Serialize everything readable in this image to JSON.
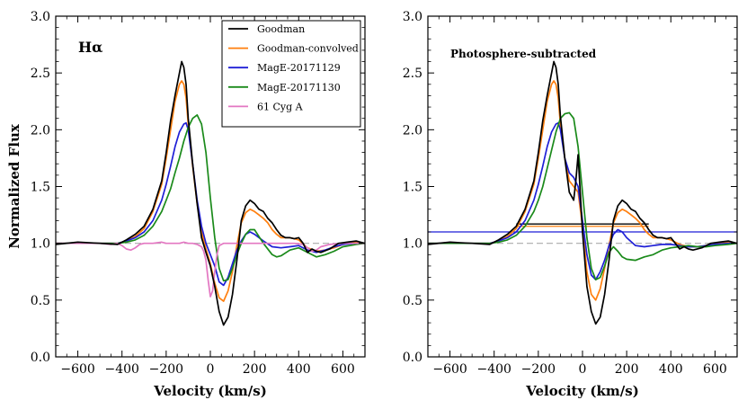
{
  "chart_data": [
    {
      "type": "line",
      "panel": "left",
      "annotation": "Hα",
      "xlabel": "Velocity (km/s)",
      "ylabel": "Normalized Flux",
      "xlim": [
        -700,
        700
      ],
      "ylim": [
        0.0,
        3.0
      ],
      "xticks": [
        -600,
        -400,
        -200,
        0,
        200,
        400,
        600
      ],
      "xtick_labels": [
        "−600",
        "−400",
        "−200",
        "0",
        "200",
        "400",
        "600"
      ],
      "yticks": [
        0.0,
        0.5,
        1.0,
        1.5,
        2.0,
        2.5,
        3.0
      ],
      "ytick_labels": [
        "0.0",
        "0.5",
        "1.0",
        "1.5",
        "2.0",
        "2.5",
        "3.0"
      ],
      "reference_line": {
        "y": 1.0,
        "color": "#aaaaaa",
        "style": "dashed"
      },
      "legend_position": "top-right",
      "series": [
        {
          "name": "Goodman",
          "color": "#000000",
          "x": [
            -700,
            -600,
            -500,
            -420,
            -380,
            -340,
            -300,
            -260,
            -220,
            -200,
            -180,
            -160,
            -140,
            -130,
            -120,
            -110,
            -100,
            -80,
            -60,
            -40,
            -20,
            0,
            20,
            40,
            60,
            80,
            100,
            120,
            140,
            160,
            180,
            200,
            220,
            240,
            260,
            280,
            300,
            320,
            340,
            360,
            380,
            400,
            420,
            440,
            460,
            480,
            500,
            540,
            580,
            620,
            660,
            700
          ],
          "y": [
            0.99,
            1.01,
            1.0,
            0.99,
            1.03,
            1.08,
            1.15,
            1.3,
            1.55,
            1.8,
            2.08,
            2.3,
            2.5,
            2.6,
            2.55,
            2.4,
            2.1,
            1.7,
            1.35,
            1.05,
            0.92,
            0.8,
            0.62,
            0.4,
            0.28,
            0.35,
            0.55,
            0.85,
            1.2,
            1.33,
            1.38,
            1.35,
            1.3,
            1.28,
            1.22,
            1.18,
            1.12,
            1.07,
            1.05,
            1.05,
            1.04,
            1.05,
            1.0,
            0.92,
            0.95,
            0.93,
            0.92,
            0.95,
            1.0,
            1.01,
            1.02,
            1.0
          ]
        },
        {
          "name": "Goodman-convolved",
          "color": "#ff7f0e",
          "x": [
            -700,
            -600,
            -500,
            -420,
            -380,
            -340,
            -300,
            -260,
            -220,
            -200,
            -180,
            -160,
            -140,
            -130,
            -120,
            -110,
            -100,
            -80,
            -60,
            -40,
            -20,
            0,
            20,
            40,
            60,
            80,
            100,
            120,
            140,
            160,
            180,
            200,
            220,
            240,
            260,
            280,
            300,
            320,
            340,
            360,
            380,
            400,
            440,
            480,
            520,
            560,
            600,
            660,
            700
          ],
          "y": [
            1.0,
            1.0,
            1.0,
            1.0,
            1.02,
            1.06,
            1.13,
            1.28,
            1.52,
            1.75,
            2.0,
            2.25,
            2.4,
            2.43,
            2.4,
            2.28,
            2.05,
            1.68,
            1.35,
            1.1,
            0.95,
            0.82,
            0.65,
            0.52,
            0.49,
            0.58,
            0.75,
            0.98,
            1.18,
            1.27,
            1.3,
            1.28,
            1.25,
            1.22,
            1.18,
            1.12,
            1.08,
            1.05,
            1.05,
            1.05,
            1.04,
            1.03,
            0.96,
            0.93,
            0.94,
            0.96,
            0.99,
            1.01,
            1.0
          ]
        },
        {
          "name": "MagE-20171129",
          "color": "#1f1fd6",
          "x": [
            -700,
            -600,
            -500,
            -420,
            -380,
            -340,
            -300,
            -260,
            -220,
            -200,
            -180,
            -160,
            -140,
            -120,
            -110,
            -100,
            -80,
            -60,
            -40,
            -20,
            0,
            20,
            40,
            60,
            80,
            100,
            120,
            140,
            160,
            180,
            200,
            240,
            280,
            320,
            360,
            400,
            440,
            480,
            520,
            560,
            600,
            660,
            700
          ],
          "y": [
            1.0,
            1.0,
            1.0,
            1.0,
            1.02,
            1.05,
            1.1,
            1.2,
            1.38,
            1.52,
            1.68,
            1.85,
            1.98,
            2.05,
            2.06,
            2.0,
            1.7,
            1.38,
            1.15,
            1.0,
            0.9,
            0.8,
            0.66,
            0.63,
            0.7,
            0.82,
            0.94,
            1.02,
            1.08,
            1.1,
            1.08,
            1.02,
            0.97,
            0.96,
            0.97,
            0.98,
            0.94,
            0.92,
            0.94,
            0.97,
            0.99,
            1.0,
            1.0
          ]
        },
        {
          "name": "MagE-20171130",
          "color": "#1a8a1a",
          "x": [
            -700,
            -600,
            -500,
            -420,
            -380,
            -340,
            -300,
            -260,
            -220,
            -200,
            -180,
            -160,
            -140,
            -120,
            -100,
            -80,
            -60,
            -40,
            -20,
            0,
            20,
            40,
            60,
            80,
            100,
            120,
            140,
            160,
            180,
            200,
            240,
            280,
            300,
            320,
            360,
            400,
            440,
            480,
            520,
            560,
            600,
            660,
            700
          ],
          "y": [
            1.0,
            1.0,
            1.0,
            1.0,
            1.01,
            1.03,
            1.07,
            1.15,
            1.28,
            1.38,
            1.48,
            1.62,
            1.75,
            1.9,
            2.02,
            2.1,
            2.13,
            2.05,
            1.8,
            1.4,
            1.05,
            0.78,
            0.67,
            0.68,
            0.78,
            0.9,
            1.0,
            1.08,
            1.12,
            1.12,
            1.0,
            0.9,
            0.88,
            0.89,
            0.94,
            0.96,
            0.92,
            0.88,
            0.9,
            0.93,
            0.97,
            0.99,
            1.0
          ]
        },
        {
          "name": "61 Cyg A",
          "color": "#e377c2",
          "x": [
            -700,
            -600,
            -500,
            -450,
            -420,
            -400,
            -380,
            -360,
            -340,
            -320,
            -300,
            -260,
            -220,
            -200,
            -180,
            -160,
            -140,
            -120,
            -100,
            -80,
            -60,
            -40,
            -30,
            -20,
            -10,
            0,
            10,
            20,
            30,
            40,
            60,
            80,
            100,
            140,
            180,
            220,
            260,
            300,
            340,
            380,
            420,
            440,
            460,
            480,
            500,
            540,
            600,
            660,
            700
          ],
          "y": [
            1.0,
            1.0,
            1.0,
            0.99,
            1.0,
            0.98,
            0.95,
            0.94,
            0.96,
            0.99,
            1.0,
            1.0,
            1.01,
            1.0,
            1.0,
            1.0,
            1.0,
            1.01,
            1.0,
            1.0,
            0.99,
            0.97,
            0.93,
            0.85,
            0.68,
            0.53,
            0.58,
            0.75,
            0.9,
            0.98,
            1.0,
            1.0,
            1.0,
            1.0,
            1.0,
            1.0,
            1.0,
            1.0,
            1.0,
            1.0,
            0.99,
            0.96,
            0.93,
            0.94,
            0.97,
            0.99,
            1.0,
            1.0,
            1.0
          ]
        }
      ],
      "legend": [
        "Goodman",
        "Goodman-convolved",
        "MagE-20171129",
        "MagE-20171130",
        "61 Cyg A"
      ]
    },
    {
      "type": "line",
      "panel": "right",
      "annotation": "Photosphere-subtracted",
      "xlabel": "Velocity (km/s)",
      "ylabel": "",
      "xlim": [
        -700,
        700
      ],
      "ylim": [
        0.0,
        3.0
      ],
      "xticks": [
        -600,
        -400,
        -200,
        0,
        200,
        400,
        600
      ],
      "xtick_labels": [
        "−600",
        "−400",
        "−200",
        "0",
        "200",
        "400",
        "600"
      ],
      "yticks": [
        0.0,
        0.5,
        1.0,
        1.5,
        2.0,
        2.5,
        3.0
      ],
      "ytick_labels": [
        "0.0",
        "0.5",
        "1.0",
        "1.5",
        "2.0",
        "2.5",
        "3.0"
      ],
      "reference_line": {
        "y": 1.0,
        "color": "#aaaaaa",
        "style": "dashed"
      },
      "series": [
        {
          "name": "Goodman",
          "color": "#000000",
          "x": [
            -700,
            -600,
            -500,
            -420,
            -380,
            -340,
            -300,
            -260,
            -220,
            -200,
            -180,
            -160,
            -140,
            -130,
            -120,
            -110,
            -100,
            -80,
            -60,
            -40,
            -30,
            -20,
            0,
            20,
            40,
            60,
            80,
            100,
            120,
            140,
            160,
            180,
            200,
            220,
            240,
            260,
            280,
            300,
            320,
            340,
            360,
            380,
            400,
            420,
            440,
            460,
            480,
            500,
            540,
            580,
            620,
            660,
            700
          ],
          "y": [
            0.99,
            1.01,
            1.0,
            0.99,
            1.03,
            1.08,
            1.15,
            1.3,
            1.55,
            1.8,
            2.08,
            2.3,
            2.5,
            2.6,
            2.55,
            2.4,
            2.12,
            1.75,
            1.45,
            1.38,
            1.55,
            1.78,
            1.1,
            0.62,
            0.4,
            0.29,
            0.35,
            0.55,
            0.85,
            1.2,
            1.33,
            1.38,
            1.35,
            1.3,
            1.28,
            1.22,
            1.18,
            1.12,
            1.07,
            1.05,
            1.05,
            1.04,
            1.05,
            1.0,
            0.95,
            0.97,
            0.95,
            0.94,
            0.96,
            1.0,
            1.01,
            1.02,
            1.0
          ]
        },
        {
          "name": "Goodman-convolved",
          "color": "#ff7f0e",
          "x": [
            -700,
            -600,
            -500,
            -420,
            -380,
            -340,
            -300,
            -260,
            -220,
            -200,
            -180,
            -160,
            -140,
            -130,
            -120,
            -110,
            -100,
            -80,
            -60,
            -40,
            -20,
            0,
            20,
            40,
            60,
            80,
            100,
            120,
            140,
            160,
            180,
            200,
            220,
            240,
            260,
            280,
            300,
            320,
            340,
            360,
            380,
            400,
            440,
            480,
            520,
            560,
            600,
            660,
            700
          ],
          "y": [
            1.0,
            1.0,
            1.0,
            1.0,
            1.02,
            1.06,
            1.13,
            1.28,
            1.52,
            1.75,
            2.0,
            2.25,
            2.4,
            2.43,
            2.4,
            2.28,
            2.05,
            1.75,
            1.55,
            1.5,
            1.45,
            1.15,
            0.75,
            0.55,
            0.5,
            0.6,
            0.78,
            0.98,
            1.18,
            1.27,
            1.3,
            1.28,
            1.25,
            1.22,
            1.18,
            1.12,
            1.08,
            1.05,
            1.05,
            1.05,
            1.04,
            1.03,
            0.99,
            0.97,
            0.97,
            0.98,
            0.99,
            1.01,
            1.0
          ]
        },
        {
          "name": "MagE-20171129",
          "color": "#1f1fd6",
          "x": [
            -700,
            -600,
            -500,
            -420,
            -380,
            -340,
            -300,
            -260,
            -220,
            -200,
            -180,
            -160,
            -140,
            -120,
            -110,
            -100,
            -80,
            -60,
            -40,
            -20,
            0,
            20,
            40,
            60,
            80,
            100,
            120,
            140,
            160,
            180,
            200,
            240,
            280,
            320,
            360,
            400,
            440,
            480,
            520,
            560,
            600,
            660,
            700
          ],
          "y": [
            1.0,
            1.0,
            1.0,
            1.0,
            1.02,
            1.05,
            1.1,
            1.2,
            1.38,
            1.52,
            1.68,
            1.85,
            1.98,
            2.05,
            2.06,
            2.0,
            1.75,
            1.62,
            1.58,
            1.5,
            1.2,
            0.9,
            0.72,
            0.68,
            0.75,
            0.85,
            0.98,
            1.08,
            1.12,
            1.1,
            1.05,
            0.98,
            0.97,
            0.98,
            0.99,
            0.99,
            0.98,
            0.97,
            0.97,
            0.98,
            0.99,
            1.0,
            1.0
          ]
        },
        {
          "name": "MagE-20171130",
          "color": "#1a8a1a",
          "x": [
            -700,
            -600,
            -500,
            -420,
            -380,
            -340,
            -300,
            -260,
            -220,
            -200,
            -180,
            -160,
            -140,
            -120,
            -100,
            -80,
            -60,
            -40,
            -20,
            0,
            20,
            40,
            60,
            80,
            100,
            120,
            140,
            160,
            180,
            200,
            240,
            280,
            320,
            360,
            400,
            440,
            480,
            520,
            560,
            600,
            660,
            700
          ],
          "y": [
            1.0,
            1.0,
            1.0,
            1.0,
            1.01,
            1.03,
            1.07,
            1.15,
            1.28,
            1.38,
            1.5,
            1.66,
            1.82,
            1.98,
            2.1,
            2.14,
            2.15,
            2.1,
            1.85,
            1.45,
            1.05,
            0.78,
            0.68,
            0.7,
            0.8,
            0.92,
            0.97,
            0.93,
            0.88,
            0.86,
            0.85,
            0.88,
            0.9,
            0.94,
            0.96,
            0.97,
            0.98,
            0.97,
            0.97,
            0.98,
            0.99,
            1.0
          ]
        }
      ],
      "guide_lines": [
        {
          "color": "#000000",
          "y": 1.17,
          "x_range": [
            -300,
            300
          ]
        },
        {
          "color": "#ff7f0e",
          "y": 1.15,
          "x_range": [
            -300,
            300
          ]
        },
        {
          "color": "#1f1fd6",
          "y": 1.1,
          "x_range": [
            -700,
            700
          ]
        }
      ]
    }
  ]
}
